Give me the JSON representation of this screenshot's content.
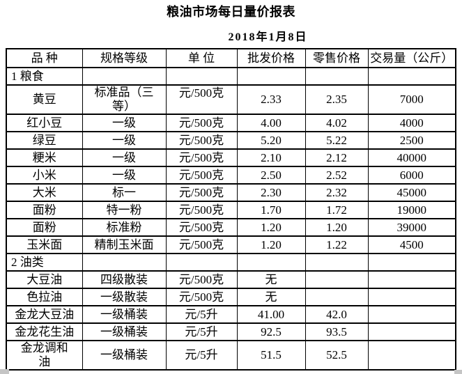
{
  "page": {
    "title": "粮油市场每日量价报表",
    "date": "2018年1月8日"
  },
  "table": {
    "headers": [
      "品 种",
      "规格等级",
      "单 位",
      "批发价格",
      "零售价格",
      "交易量（公斤）"
    ],
    "column_keys": [
      "name",
      "spec",
      "unit",
      "wholesale",
      "retail",
      "volume"
    ],
    "rows": [
      {
        "type": "section",
        "name": "1 粮食",
        "spec": "",
        "unit": "",
        "wholesale": "",
        "retail": "",
        "volume": ""
      },
      {
        "type": "data",
        "name": "黄豆",
        "spec": "标准品（三\n等）",
        "unit": "元/500克",
        "wholesale": "2.33",
        "retail": "2.35",
        "volume": "7000"
      },
      {
        "type": "data",
        "name": "红小豆",
        "spec": "一级",
        "unit": "元/500克",
        "wholesale": "4.00",
        "retail": "4.02",
        "volume": "4000"
      },
      {
        "type": "data",
        "name": "绿豆",
        "spec": "一级",
        "unit": "元/500克",
        "wholesale": "5.20",
        "retail": "5.22",
        "volume": "2500"
      },
      {
        "type": "data",
        "name": "粳米",
        "spec": "一级",
        "unit": "元/500克",
        "wholesale": "2.10",
        "retail": "2.12",
        "volume": "40000"
      },
      {
        "type": "data",
        "name": "小米",
        "spec": "一级",
        "unit": "元/500克",
        "wholesale": "2.50",
        "retail": "2.52",
        "volume": "6000"
      },
      {
        "type": "data",
        "name": "大米",
        "spec": "标一",
        "unit": "元/500克",
        "wholesale": "2.30",
        "retail": "2.32",
        "volume": "45000"
      },
      {
        "type": "data",
        "name": "面粉",
        "spec": "特一粉",
        "unit": "元/500克",
        "wholesale": "1.70",
        "retail": "1.72",
        "volume": "19000"
      },
      {
        "type": "data",
        "name": "面粉",
        "spec": "标准粉",
        "unit": "元/500克",
        "wholesale": "1.20",
        "retail": "1.20",
        "volume": "39000"
      },
      {
        "type": "data",
        "name": "玉米面",
        "spec": "精制玉米面",
        "unit": "元/500克",
        "wholesale": "1.20",
        "retail": "1.22",
        "volume": "4500"
      },
      {
        "type": "section",
        "name": "2 油类",
        "spec": "",
        "unit": "",
        "wholesale": "",
        "retail": "",
        "volume": ""
      },
      {
        "type": "data",
        "name": "大豆油",
        "spec": "四级散装",
        "unit": "元/500克",
        "wholesale": "无",
        "retail": "",
        "volume": ""
      },
      {
        "type": "data",
        "name": "色拉油",
        "spec": "一级散装",
        "unit": "元/500克",
        "wholesale": "无",
        "retail": "",
        "volume": ""
      },
      {
        "type": "data",
        "name": "金龙大豆油",
        "spec": "一级桶装",
        "unit": "元/5升",
        "wholesale": "41.00",
        "retail": "42.0",
        "volume": "",
        "merged_price_cells": true
      },
      {
        "type": "data",
        "name": "金龙花生油",
        "spec": "一级桶装",
        "unit": "元/5升",
        "wholesale": "92.5",
        "retail": "93.5",
        "volume": ""
      },
      {
        "type": "data",
        "name": "金龙调和\n油",
        "spec": "一级桶装",
        "unit": "元/5升",
        "wholesale": "51.5",
        "retail": "52.5",
        "volume": "",
        "merged_price_cells": true
      }
    ]
  },
  "colors": {
    "background": "#ffffff",
    "text": "#000000",
    "border": "#000000",
    "corner_artifact": "#c5c5c5"
  }
}
